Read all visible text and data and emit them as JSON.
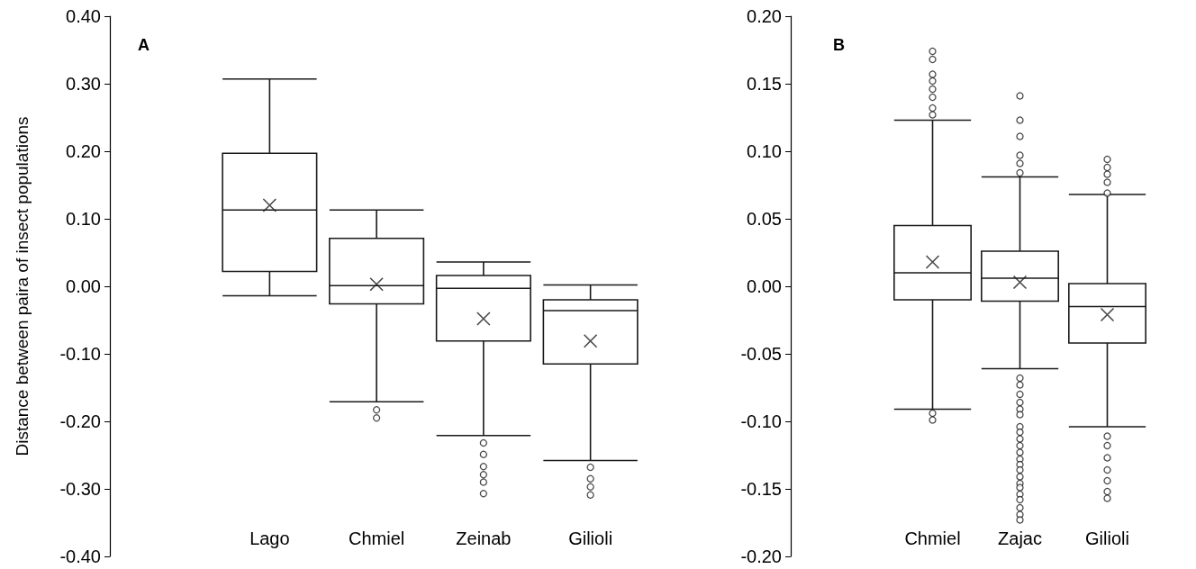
{
  "chart_data": [
    {
      "type": "box",
      "title": "A",
      "ylabel": "Distance between paira of insect populations",
      "categories": [
        "Lago",
        "Chmiel",
        "Zeinab",
        "Gilioli"
      ],
      "ylim": [
        -0.4,
        0.4
      ],
      "yticks": [
        {
          "value": -0.4,
          "label": "-0.40"
        },
        {
          "value": -0.3,
          "label": "-0.30"
        },
        {
          "value": -0.2,
          "label": "-0.20"
        },
        {
          "value": -0.1,
          "label": "-0.10"
        },
        {
          "value": 0,
          "label": "0.00"
        },
        {
          "value": 0.1,
          "label": "0.10"
        },
        {
          "value": 0.2,
          "label": "0.20"
        },
        {
          "value": 0.3,
          "label": "0.30"
        },
        {
          "value": 0.4,
          "label": "0.40"
        }
      ],
      "grid": false,
      "series": [
        {
          "color": "#1a1a1a",
          "boxes": [
            {
              "low": -0.014,
              "q1": 0.022,
              "median": 0.113,
              "q3": 0.197,
              "high": 0.307,
              "mean": 0.12
            },
            {
              "low": -0.171,
              "q1": -0.026,
              "median": 0.001,
              "q3": 0.071,
              "high": 0.113,
              "mean": 0.003,
              "outliers": [
                -0.183,
                -0.195
              ]
            },
            {
              "low": -0.221,
              "q1": -0.081,
              "median": -0.003,
              "q3": 0.016,
              "high": 0.036,
              "mean": -0.048,
              "outliers": [
                -0.232,
                -0.249,
                -0.267,
                -0.279,
                -0.29,
                -0.307
              ]
            },
            {
              "low": -0.258,
              "q1": -0.115,
              "median": -0.036,
              "q3": -0.02,
              "high": 0.002,
              "mean": -0.081,
              "outliers": [
                -0.268,
                -0.285,
                -0.297,
                -0.309
              ]
            }
          ]
        }
      ]
    },
    {
      "type": "box",
      "title": "B",
      "categories": [
        "Chmiel",
        "Zajac",
        "Gilioli"
      ],
      "ylim": [
        -0.2,
        0.2
      ],
      "yticks": [
        {
          "value": -0.2,
          "label": "-0.20"
        },
        {
          "value": -0.15,
          "label": "-0.15"
        },
        {
          "value": -0.1,
          "label": "-0.10"
        },
        {
          "value": -0.05,
          "label": "-0.05"
        },
        {
          "value": 0,
          "label": "0.00"
        },
        {
          "value": 0.05,
          "label": "0.05"
        },
        {
          "value": 0.1,
          "label": "0.10"
        },
        {
          "value": 0.15,
          "label": "0.15"
        },
        {
          "value": 0.2,
          "label": "0.20"
        }
      ],
      "grid": false,
      "series": [
        {
          "color": "#1a1a1a",
          "boxes": [
            {
              "low": -0.091,
              "q1": -0.01,
              "median": 0.01,
              "q3": 0.045,
              "high": 0.123,
              "mean": 0.018,
              "outliers": [
                -0.094,
                -0.099,
                0.127,
                0.132,
                0.14,
                0.146,
                0.152,
                0.157,
                0.168,
                0.174
              ]
            },
            {
              "low": -0.061,
              "q1": -0.011,
              "median": 0.006,
              "q3": 0.026,
              "high": 0.081,
              "mean": 0.003,
              "outliers": [
                0.084,
                0.091,
                0.097,
                0.111,
                0.123,
                0.141,
                -0.068,
                -0.073,
                -0.08,
                -0.086,
                -0.091,
                -0.095,
                -0.104,
                -0.108,
                -0.113,
                -0.118,
                -0.123,
                -0.128,
                -0.132,
                -0.136,
                -0.141,
                -0.146,
                -0.149,
                -0.154,
                -0.158,
                -0.164,
                -0.169,
                -0.173
              ]
            },
            {
              "low": -0.104,
              "q1": -0.042,
              "median": -0.015,
              "q3": 0.002,
              "high": 0.068,
              "mean": -0.021,
              "outliers": [
                0.069,
                0.077,
                0.083,
                0.088,
                0.094,
                -0.111,
                -0.118,
                -0.127,
                -0.136,
                -0.144,
                -0.152,
                -0.157
              ]
            }
          ]
        }
      ]
    }
  ]
}
